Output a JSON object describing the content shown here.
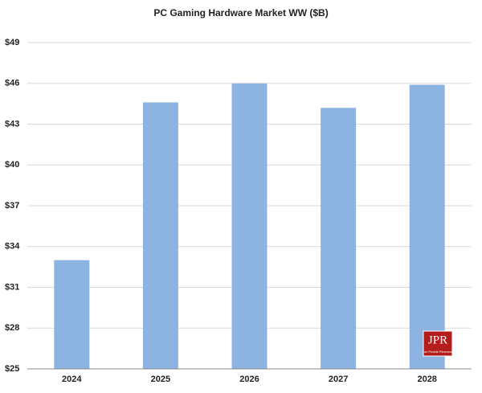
{
  "chart_data": {
    "type": "bar",
    "title": "PC Gaming  Hardware Market WW ($B)",
    "categories": [
      "2024",
      "2025",
      "2026",
      "2027",
      "2028"
    ],
    "values": [
      33.0,
      44.6,
      46.0,
      44.2,
      45.9
    ],
    "color": "#8db3e2",
    "ylim": [
      25,
      49
    ],
    "yticks": [
      {
        "value": 25,
        "label": "$25"
      },
      {
        "value": 28,
        "label": "$28"
      },
      {
        "value": 31,
        "label": "$31"
      },
      {
        "value": 34,
        "label": "$34"
      },
      {
        "value": 37,
        "label": "$37"
      },
      {
        "value": 40,
        "label": "$40"
      },
      {
        "value": 43,
        "label": "$43"
      },
      {
        "value": 46,
        "label": "$46"
      },
      {
        "value": 49,
        "label": "$49"
      }
    ],
    "grid": true,
    "logo": "JPR",
    "logo_subtitle": "Jon Peddie Research"
  }
}
